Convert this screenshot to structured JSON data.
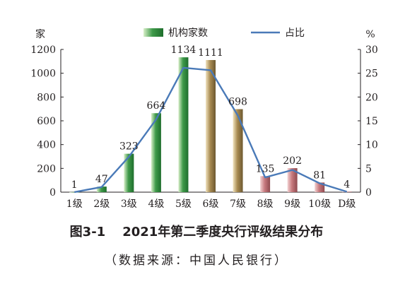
{
  "chart_data": {
    "type": "bar+line",
    "categories": [
      "1级",
      "2级",
      "3级",
      "4级",
      "5级",
      "6级",
      "7级",
      "8级",
      "9级",
      "10级",
      "D级"
    ],
    "series": [
      {
        "name": "机构家数",
        "type": "bar",
        "axis": "left",
        "values": [
          1,
          47,
          323,
          664,
          1134,
          1111,
          698,
          135,
          202,
          81,
          4
        ]
      },
      {
        "name": "占比",
        "type": "line",
        "axis": "right",
        "values": [
          0.02,
          1.08,
          7.45,
          15.31,
          26.16,
          25.63,
          16.1,
          3.11,
          4.66,
          1.87,
          0.09
        ]
      }
    ],
    "data_labels": [
      "1",
      "47",
      "323",
      "664",
      "1134",
      "1111",
      "698",
      "135",
      "202",
      "81",
      "4"
    ],
    "y_left": {
      "unit": "家",
      "range": [
        0,
        1200
      ],
      "ticks": [
        "0",
        "200",
        "400",
        "600",
        "800",
        "1000",
        "1200"
      ]
    },
    "y_right": {
      "unit": "%",
      "range": [
        0,
        30
      ],
      "ticks": [
        "0",
        "5",
        "10",
        "15",
        "20",
        "25",
        "30"
      ]
    },
    "legend": {
      "placement": "top",
      "items": [
        "机构家数",
        "占比"
      ]
    },
    "grid": false,
    "colors": {
      "green_bar": "#3f9a4a",
      "tan_bar": "#a88b52",
      "pink_bar": "#c7797e",
      "line": "#4a7ab8",
      "axis": "#231f20"
    }
  },
  "caption": {
    "figure_no": "图3-1",
    "title": "2021年第二季度央行评级结果分布",
    "source": "（数据来源：中国人民银行）"
  }
}
